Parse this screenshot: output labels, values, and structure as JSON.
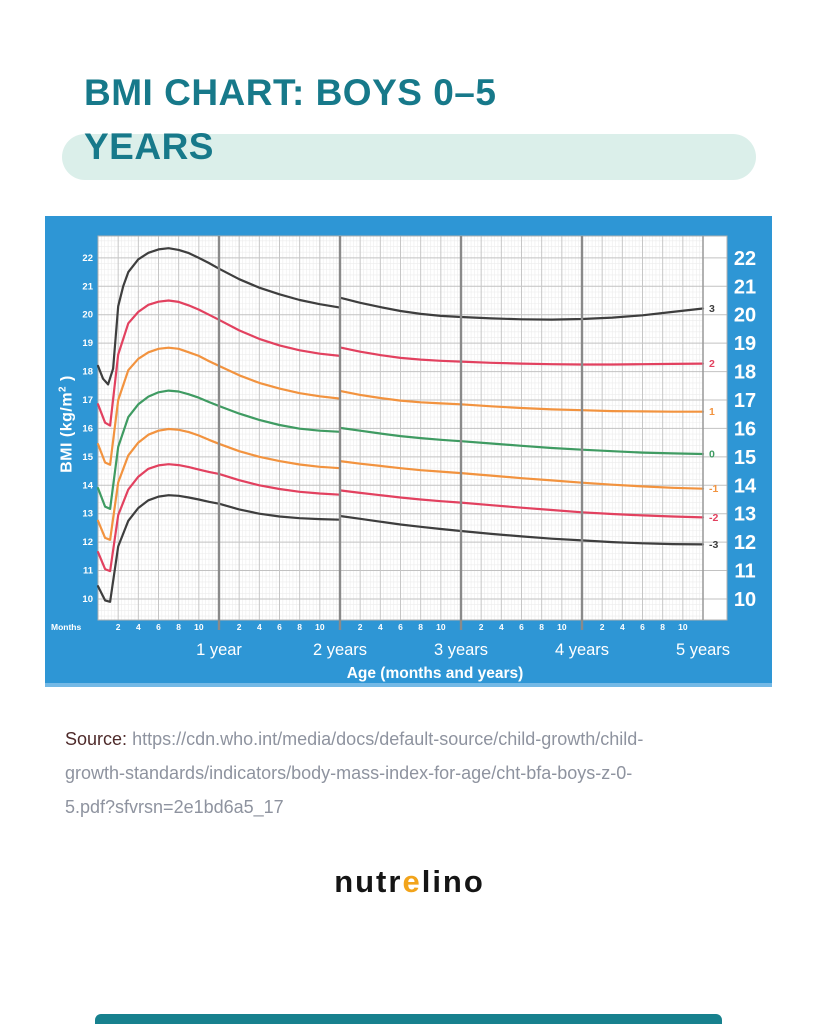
{
  "header": {
    "title_line1": "BMI CHART: BOYS 0–5",
    "title_line2": "YEARS"
  },
  "source": {
    "label": "Source:",
    "url": "https://cdn.who.int/media/docs/default-source/child-growth/child-growth-standards/indicators/body-mass-index-for-age/cht-bfa-boys-z-0-5.pdf?sfvrsn=2e1bd6a5_17"
  },
  "logo": {
    "part1": "nutr",
    "accent": "e",
    "part2": "lino"
  },
  "footer": {
    "bar_color": "#17818E"
  },
  "chart_data": {
    "type": "line",
    "xlabel": "Age (months and years)",
    "ylabel_main": "BMI (kg/m",
    "ylabel_sup": "2",
    "ylabel_close": " )",
    "months_label": "Months",
    "x_range_months": [
      0,
      60
    ],
    "y_range": [
      9.26,
      22.77
    ],
    "y_ticks": [
      10,
      11,
      12,
      13,
      14,
      15,
      16,
      17,
      18,
      19,
      20,
      21,
      22
    ],
    "month_tick_values": [
      2,
      4,
      6,
      8,
      10
    ],
    "year_labels": [
      "1 year",
      "2 years",
      "3 years",
      "4 years",
      "5 years"
    ],
    "year_line_months": [
      12,
      24,
      36,
      48
    ],
    "grid": true,
    "legend_position": "right-edge-curve-labels",
    "colors": {
      "panel": "#2E96D5",
      "plot_bg": "#ffffff",
      "grid_minor": "#ececec",
      "grid_major": "#c6c6c6",
      "grid_unit": "#c2c2c2",
      "grid_year": "#8a8a8a",
      "plot_border": "#b0b0b0",
      "black": "#3E3E3E",
      "red": "#E2415F",
      "orange": "#F2933F",
      "green": "#3F9B62",
      "tick_text": "#ffffff"
    },
    "series": [
      {
        "label": "3",
        "zscore": 3,
        "color_key": "black",
        "segments": [
          [
            [
              0,
              18.2
            ],
            [
              0.5,
              17.75
            ],
            [
              1,
              17.55
            ],
            [
              1.5,
              18.1
            ],
            [
              2,
              20.3
            ],
            [
              2.5,
              21.0
            ],
            [
              3,
              21.5
            ],
            [
              4,
              21.95
            ],
            [
              5,
              22.18
            ],
            [
              6,
              22.3
            ],
            [
              7,
              22.34
            ],
            [
              8,
              22.28
            ],
            [
              9,
              22.17
            ],
            [
              10,
              22.0
            ],
            [
              11,
              21.82
            ],
            [
              12,
              21.62
            ],
            [
              14,
              21.25
            ],
            [
              16,
              20.95
            ],
            [
              18,
              20.72
            ],
            [
              20,
              20.52
            ],
            [
              22,
              20.37
            ],
            [
              24,
              20.25
            ]
          ],
          [
            [
              24,
              20.6
            ],
            [
              26,
              20.42
            ],
            [
              28,
              20.27
            ],
            [
              30,
              20.13
            ],
            [
              32,
              20.03
            ],
            [
              34,
              19.96
            ],
            [
              36,
              19.92
            ],
            [
              39,
              19.87
            ],
            [
              42,
              19.84
            ],
            [
              45,
              19.83
            ],
            [
              48,
              19.85
            ],
            [
              51,
              19.9
            ],
            [
              54,
              19.98
            ],
            [
              57,
              20.1
            ],
            [
              60,
              20.22
            ]
          ]
        ]
      },
      {
        "label": "2",
        "zscore": 2,
        "color_key": "red",
        "segments": [
          [
            [
              0,
              16.85
            ],
            [
              0.7,
              16.2
            ],
            [
              1.2,
              16.1
            ],
            [
              2,
              18.6
            ],
            [
              3,
              19.7
            ],
            [
              4,
              20.1
            ],
            [
              5,
              20.35
            ],
            [
              6,
              20.46
            ],
            [
              7,
              20.5
            ],
            [
              8,
              20.45
            ],
            [
              9,
              20.33
            ],
            [
              10,
              20.18
            ],
            [
              11,
              20.0
            ],
            [
              12,
              19.82
            ],
            [
              14,
              19.45
            ],
            [
              16,
              19.15
            ],
            [
              18,
              18.92
            ],
            [
              20,
              18.75
            ],
            [
              22,
              18.63
            ],
            [
              24,
              18.55
            ]
          ],
          [
            [
              24,
              18.85
            ],
            [
              26,
              18.7
            ],
            [
              28,
              18.58
            ],
            [
              30,
              18.48
            ],
            [
              32,
              18.42
            ],
            [
              34,
              18.38
            ],
            [
              36,
              18.35
            ],
            [
              39,
              18.31
            ],
            [
              42,
              18.28
            ],
            [
              45,
              18.26
            ],
            [
              48,
              18.25
            ],
            [
              51,
              18.25
            ],
            [
              54,
              18.26
            ],
            [
              57,
              18.27
            ],
            [
              60,
              18.28
            ]
          ]
        ]
      },
      {
        "label": "1",
        "zscore": 1,
        "color_key": "orange",
        "segments": [
          [
            [
              0,
              15.45
            ],
            [
              0.7,
              14.8
            ],
            [
              1.2,
              14.72
            ],
            [
              2,
              17.0
            ],
            [
              3,
              18.05
            ],
            [
              4,
              18.45
            ],
            [
              5,
              18.68
            ],
            [
              6,
              18.8
            ],
            [
              7,
              18.84
            ],
            [
              8,
              18.8
            ],
            [
              9,
              18.68
            ],
            [
              10,
              18.55
            ],
            [
              11,
              18.37
            ],
            [
              12,
              18.2
            ],
            [
              14,
              17.87
            ],
            [
              16,
              17.6
            ],
            [
              18,
              17.4
            ],
            [
              20,
              17.24
            ],
            [
              22,
              17.13
            ],
            [
              24,
              17.05
            ]
          ],
          [
            [
              24,
              17.32
            ],
            [
              26,
              17.18
            ],
            [
              28,
              17.07
            ],
            [
              30,
              16.98
            ],
            [
              32,
              16.92
            ],
            [
              34,
              16.88
            ],
            [
              36,
              16.85
            ],
            [
              39,
              16.78
            ],
            [
              42,
              16.72
            ],
            [
              45,
              16.67
            ],
            [
              48,
              16.64
            ],
            [
              51,
              16.61
            ],
            [
              54,
              16.6
            ],
            [
              57,
              16.59
            ],
            [
              60,
              16.59
            ]
          ]
        ]
      },
      {
        "label": "0",
        "zscore": 0,
        "color_key": "green",
        "segments": [
          [
            [
              0,
              13.9
            ],
            [
              0.7,
              13.25
            ],
            [
              1.2,
              13.17
            ],
            [
              2,
              15.35
            ],
            [
              3,
              16.4
            ],
            [
              4,
              16.85
            ],
            [
              5,
              17.12
            ],
            [
              6,
              17.27
            ],
            [
              7,
              17.33
            ],
            [
              8,
              17.3
            ],
            [
              9,
              17.2
            ],
            [
              10,
              17.08
            ],
            [
              11,
              16.93
            ],
            [
              12,
              16.79
            ],
            [
              14,
              16.52
            ],
            [
              16,
              16.3
            ],
            [
              18,
              16.12
            ],
            [
              20,
              15.99
            ],
            [
              22,
              15.92
            ],
            [
              24,
              15.88
            ]
          ],
          [
            [
              24,
              16.02
            ],
            [
              26,
              15.92
            ],
            [
              28,
              15.82
            ],
            [
              30,
              15.73
            ],
            [
              32,
              15.66
            ],
            [
              34,
              15.6
            ],
            [
              36,
              15.55
            ],
            [
              39,
              15.47
            ],
            [
              42,
              15.39
            ],
            [
              45,
              15.31
            ],
            [
              48,
              15.25
            ],
            [
              51,
              15.2
            ],
            [
              54,
              15.15
            ],
            [
              57,
              15.12
            ],
            [
              60,
              15.1
            ]
          ]
        ]
      },
      {
        "label": "-1",
        "zscore": -1,
        "color_key": "orange",
        "segments": [
          [
            [
              0,
              12.75
            ],
            [
              0.7,
              12.15
            ],
            [
              1.2,
              12.08
            ],
            [
              2,
              14.1
            ],
            [
              3,
              15.05
            ],
            [
              4,
              15.5
            ],
            [
              5,
              15.78
            ],
            [
              6,
              15.92
            ],
            [
              7,
              15.98
            ],
            [
              8,
              15.95
            ],
            [
              9,
              15.87
            ],
            [
              10,
              15.75
            ],
            [
              11,
              15.6
            ],
            [
              12,
              15.46
            ],
            [
              14,
              15.2
            ],
            [
              16,
              15.0
            ],
            [
              18,
              14.85
            ],
            [
              20,
              14.73
            ],
            [
              22,
              14.65
            ],
            [
              24,
              14.6
            ]
          ],
          [
            [
              24,
              14.85
            ],
            [
              26,
              14.76
            ],
            [
              28,
              14.68
            ],
            [
              30,
              14.6
            ],
            [
              32,
              14.53
            ],
            [
              34,
              14.48
            ],
            [
              36,
              14.43
            ],
            [
              39,
              14.34
            ],
            [
              42,
              14.25
            ],
            [
              45,
              14.17
            ],
            [
              48,
              14.09
            ],
            [
              51,
              14.02
            ],
            [
              54,
              13.96
            ],
            [
              57,
              13.91
            ],
            [
              60,
              13.88
            ]
          ]
        ]
      },
      {
        "label": "-2",
        "zscore": -2,
        "color_key": "red",
        "segments": [
          [
            [
              0,
              11.65
            ],
            [
              0.7,
              11.05
            ],
            [
              1.2,
              10.98
            ],
            [
              2,
              12.95
            ],
            [
              3,
              13.85
            ],
            [
              4,
              14.3
            ],
            [
              5,
              14.58
            ],
            [
              6,
              14.7
            ],
            [
              7,
              14.74
            ],
            [
              8,
              14.71
            ],
            [
              9,
              14.64
            ],
            [
              10,
              14.55
            ],
            [
              11,
              14.47
            ],
            [
              12,
              14.4
            ],
            [
              14,
              14.18
            ],
            [
              16,
              14.0
            ],
            [
              18,
              13.87
            ],
            [
              20,
              13.77
            ],
            [
              22,
              13.71
            ],
            [
              24,
              13.67
            ]
          ],
          [
            [
              24,
              13.82
            ],
            [
              26,
              13.73
            ],
            [
              28,
              13.65
            ],
            [
              30,
              13.57
            ],
            [
              32,
              13.5
            ],
            [
              34,
              13.44
            ],
            [
              36,
              13.39
            ],
            [
              39,
              13.3
            ],
            [
              42,
              13.21
            ],
            [
              45,
              13.13
            ],
            [
              48,
              13.05
            ],
            [
              51,
              12.99
            ],
            [
              54,
              12.94
            ],
            [
              57,
              12.9
            ],
            [
              60,
              12.87
            ]
          ]
        ]
      },
      {
        "label": "-3",
        "zscore": -3,
        "color_key": "black",
        "segments": [
          [
            [
              0,
              10.45
            ],
            [
              0.7,
              9.95
            ],
            [
              1.2,
              9.9
            ],
            [
              2,
              11.85
            ],
            [
              3,
              12.75
            ],
            [
              4,
              13.2
            ],
            [
              5,
              13.47
            ],
            [
              6,
              13.6
            ],
            [
              7,
              13.65
            ],
            [
              8,
              13.63
            ],
            [
              9,
              13.57
            ],
            [
              10,
              13.5
            ],
            [
              11,
              13.42
            ],
            [
              12,
              13.35
            ],
            [
              14,
              13.15
            ],
            [
              16,
              13.0
            ],
            [
              18,
              12.9
            ],
            [
              20,
              12.84
            ],
            [
              22,
              12.81
            ],
            [
              24,
              12.79
            ]
          ],
          [
            [
              24,
              12.92
            ],
            [
              26,
              12.82
            ],
            [
              28,
              12.72
            ],
            [
              30,
              12.62
            ],
            [
              32,
              12.54
            ],
            [
              34,
              12.46
            ],
            [
              36,
              12.39
            ],
            [
              39,
              12.29
            ],
            [
              42,
              12.2
            ],
            [
              45,
              12.12
            ],
            [
              48,
              12.06
            ],
            [
              51,
              12.0
            ],
            [
              54,
              11.96
            ],
            [
              57,
              11.93
            ],
            [
              60,
              11.92
            ]
          ]
        ]
      }
    ]
  }
}
